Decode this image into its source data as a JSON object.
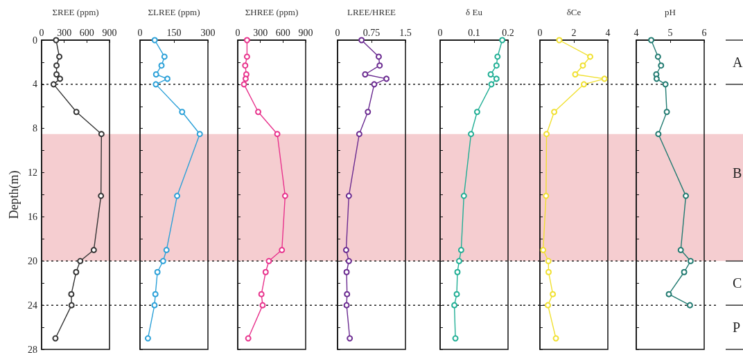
{
  "chart_data": [
    {
      "type": "line",
      "xlabel": "ΣREE (ppm)",
      "ylabel": "Depth(m)",
      "xlim": [
        0,
        900
      ],
      "xticks": [
        0,
        300,
        600,
        900
      ],
      "ylim": [
        28,
        0
      ],
      "yticks": [
        0,
        {
          "value": 2,
          "label": null
        },
        4,
        {
          "value": 6,
          "label": null
        },
        8,
        {
          "value": 10,
          "label": null
        },
        12,
        {
          "value": 14,
          "label": null
        },
        16,
        {
          "value": 18,
          "label": null
        },
        20,
        {
          "value": 22,
          "label": null
        },
        24,
        {
          "value": 26,
          "label": null
        },
        28
      ],
      "grid": false,
      "marker": "circle",
      "line_style": "solid",
      "series": [
        {
          "color": "#333333",
          "x": [
            192,
            235,
            198,
            198,
            244,
            159,
            461,
            793,
            787,
            692,
            512,
            458,
            394,
            397,
            183
          ],
          "values": [
            0,
            1.5,
            2.3,
            3.1,
            3.5,
            4,
            6.5,
            8.5,
            14.1,
            19,
            20,
            21,
            23,
            24,
            27
          ]
        }
      ],
      "bands": [
        {
          "axis": "y",
          "from": 8.5,
          "to": 20,
          "color": "#f5cdd0"
        }
      ],
      "ref_lines": [
        {
          "axis": "y",
          "value": 4,
          "line_style": "dotted"
        },
        {
          "axis": "y",
          "value": 20,
          "line_style": "dotted"
        },
        {
          "axis": "y",
          "value": 24,
          "line_style": "dotted"
        }
      ]
    },
    {
      "type": "line",
      "xlabel": "ΣLREE (ppm)",
      "xlim": [
        0,
        300
      ],
      "xticks": [
        0,
        150,
        300
      ],
      "ylim": [
        28,
        0
      ],
      "yticks": [
        0,
        {
          "value": 2,
          "label": null
        },
        4,
        {
          "value": 6,
          "label": null
        },
        8,
        {
          "value": 10,
          "label": null
        },
        12,
        {
          "value": 14,
          "label": null
        },
        16,
        {
          "value": 18,
          "label": null
        },
        20,
        {
          "value": 22,
          "label": null
        },
        24,
        {
          "value": 26,
          "label": null
        },
        28
      ],
      "tick_labels": "x",
      "grid": false,
      "marker": "circle",
      "line_style": "solid",
      "series": [
        {
          "color": "#2aa0d8",
          "x": [
            65,
            108,
            95,
            71,
            121,
            70,
            186,
            264,
            164,
            117,
            102,
            77,
            68,
            64,
            35
          ],
          "values": [
            0,
            1.5,
            2.3,
            3.1,
            3.5,
            4,
            6.5,
            8.5,
            14.1,
            19,
            20,
            21,
            23,
            24,
            27
          ]
        }
      ],
      "bands": [
        {
          "axis": "y",
          "from": 8.5,
          "to": 20,
          "color": "#f5cdd0"
        }
      ],
      "ref_lines": [
        {
          "axis": "y",
          "value": 4,
          "line_style": "dotted"
        },
        {
          "axis": "y",
          "value": 20,
          "line_style": "dotted"
        },
        {
          "axis": "y",
          "value": 24,
          "line_style": "dotted"
        }
      ]
    },
    {
      "type": "line",
      "xlabel": "ΣHREE (ppm)",
      "xlim": [
        0,
        900
      ],
      "xticks": [
        0,
        300,
        600,
        900
      ],
      "ylim": [
        28,
        0
      ],
      "yticks": [
        0,
        {
          "value": 2,
          "label": null
        },
        4,
        {
          "value": 6,
          "label": null
        },
        8,
        {
          "value": 10,
          "label": null
        },
        12,
        {
          "value": 14,
          "label": null
        },
        16,
        {
          "value": 18,
          "label": null
        },
        20,
        {
          "value": 22,
          "label": null
        },
        24,
        {
          "value": 26,
          "label": null
        },
        28
      ],
      "tick_labels": "x",
      "grid": false,
      "marker": "circle",
      "line_style": "solid",
      "series": [
        {
          "color": "#e8328c",
          "x": [
            123,
            123,
            99,
            114,
            105,
            83,
            271,
            524,
            628,
            585,
            413,
            370,
            314,
            330,
            139
          ],
          "values": [
            0,
            1.5,
            2.3,
            3.1,
            3.5,
            4,
            6.5,
            8.5,
            14.1,
            19,
            20,
            21,
            23,
            24,
            27
          ]
        }
      ],
      "bands": [
        {
          "axis": "y",
          "from": 8.5,
          "to": 20,
          "color": "#f5cdd0"
        }
      ],
      "ref_lines": [
        {
          "axis": "y",
          "value": 4,
          "line_style": "dotted"
        },
        {
          "axis": "y",
          "value": 20,
          "line_style": "dotted"
        },
        {
          "axis": "y",
          "value": 24,
          "line_style": "dotted"
        }
      ]
    },
    {
      "type": "line",
      "xlabel": "LREE/HREE",
      "xlim": [
        0,
        1.5
      ],
      "xticks": [
        0,
        0.75,
        1.5
      ],
      "ylim": [
        28,
        0
      ],
      "yticks": [
        0,
        {
          "value": 2,
          "label": null
        },
        4,
        {
          "value": 6,
          "label": null
        },
        8,
        {
          "value": 10,
          "label": null
        },
        12,
        {
          "value": 14,
          "label": null
        },
        16,
        {
          "value": 18,
          "label": null
        },
        20,
        {
          "value": 22,
          "label": null
        },
        24,
        {
          "value": 26,
          "label": null
        },
        28
      ],
      "tick_labels": "x",
      "grid": false,
      "marker": "circle",
      "line_style": "solid",
      "series": [
        {
          "color": "#6a2a90",
          "x": [
            0.53,
            0.91,
            0.93,
            0.61,
            1.08,
            0.81,
            0.67,
            0.48,
            0.25,
            0.19,
            0.25,
            0.2,
            0.21,
            0.2,
            0.27
          ],
          "values": [
            0,
            1.5,
            2.3,
            3.1,
            3.5,
            4,
            6.5,
            8.5,
            14.1,
            19,
            20,
            21,
            23,
            24,
            27
          ]
        }
      ],
      "bands": [
        {
          "axis": "y",
          "from": 8.5,
          "to": 20,
          "color": "#f5cdd0"
        }
      ],
      "ref_lines": [
        {
          "axis": "y",
          "value": 4,
          "line_style": "dotted"
        },
        {
          "axis": "y",
          "value": 20,
          "line_style": "dotted"
        },
        {
          "axis": "y",
          "value": 24,
          "line_style": "dotted"
        }
      ]
    },
    {
      "type": "line",
      "xlabel": "δ Eu",
      "xlim": [
        0,
        0.2
      ],
      "xticks": [
        0,
        0.1,
        0.2
      ],
      "ylim": [
        28,
        0
      ],
      "yticks": [
        0,
        {
          "value": 2,
          "label": null
        },
        4,
        {
          "value": 6,
          "label": null
        },
        8,
        {
          "value": 10,
          "label": null
        },
        12,
        {
          "value": 14,
          "label": null
        },
        16,
        {
          "value": 18,
          "label": null
        },
        20,
        {
          "value": 22,
          "label": null
        },
        24,
        {
          "value": 26,
          "label": null
        },
        28
      ],
      "tick_labels": "x",
      "grid": false,
      "marker": "circle",
      "line_style": "solid",
      "series": [
        {
          "color": "#1fae94",
          "x": [
            0.183,
            0.169,
            0.166,
            0.149,
            0.166,
            0.151,
            0.109,
            0.091,
            0.07,
            0.062,
            0.056,
            0.051,
            0.049,
            0.042,
            0.045
          ],
          "values": [
            0,
            1.5,
            2.3,
            3.1,
            3.5,
            4,
            6.5,
            8.5,
            14.1,
            19,
            20,
            21,
            23,
            24,
            27
          ]
        }
      ],
      "bands": [
        {
          "axis": "y",
          "from": 8.5,
          "to": 20,
          "color": "#f5cdd0"
        }
      ],
      "ref_lines": [
        {
          "axis": "y",
          "value": 4,
          "line_style": "dotted"
        },
        {
          "axis": "y",
          "value": 20,
          "line_style": "dotted"
        },
        {
          "axis": "y",
          "value": 24,
          "line_style": "dotted"
        }
      ]
    },
    {
      "type": "line",
      "xlabel": "δCe",
      "xlim": [
        0,
        4
      ],
      "xticks": [
        0,
        2,
        4
      ],
      "ylim": [
        28,
        0
      ],
      "yticks": [
        0,
        {
          "value": 2,
          "label": null
        },
        4,
        {
          "value": 6,
          "label": null
        },
        8,
        {
          "value": 10,
          "label": null
        },
        12,
        {
          "value": 14,
          "label": null
        },
        16,
        {
          "value": 18,
          "label": null
        },
        20,
        {
          "value": 22,
          "label": null
        },
        24,
        {
          "value": 26,
          "label": null
        },
        28
      ],
      "tick_labels": "x",
      "grid": false,
      "marker": "circle",
      "line_style": "solid",
      "series": [
        {
          "color": "#f0e030",
          "x": [
            1.14,
            2.96,
            2.53,
            2.08,
            3.8,
            2.59,
            0.84,
            0.39,
            0.36,
            0.19,
            0.5,
            0.51,
            0.76,
            0.47,
            0.94
          ],
          "values": [
            0,
            1.5,
            2.3,
            3.1,
            3.5,
            4,
            6.5,
            8.5,
            14.1,
            19,
            20,
            21,
            23,
            24,
            27
          ]
        }
      ],
      "bands": [
        {
          "axis": "y",
          "from": 8.5,
          "to": 20,
          "color": "#f5cdd0"
        }
      ],
      "ref_lines": [
        {
          "axis": "y",
          "value": 4,
          "line_style": "dotted"
        },
        {
          "axis": "y",
          "value": 20,
          "line_style": "dotted"
        },
        {
          "axis": "y",
          "value": 24,
          "line_style": "dotted"
        }
      ]
    },
    {
      "type": "line",
      "xlabel": "pH",
      "xlim": [
        4,
        6
      ],
      "xticks": [
        4,
        5,
        6
      ],
      "ylim": [
        28,
        0
      ],
      "yticks": [
        0,
        {
          "value": 2,
          "label": null
        },
        4,
        {
          "value": 6,
          "label": null
        },
        8,
        {
          "value": 10,
          "label": null
        },
        12,
        {
          "value": 14,
          "label": null
        },
        16,
        {
          "value": 18,
          "label": null
        },
        20,
        {
          "value": 22,
          "label": null
        },
        24,
        {
          "value": 26,
          "label": null
        },
        28
      ],
      "tick_labels": "x",
      "grid": false,
      "marker": "circle",
      "line_style": "solid",
      "series": [
        {
          "color": "#207a70",
          "x": [
            4.44,
            4.64,
            4.73,
            4.59,
            4.6,
            4.86,
            4.9,
            4.65,
            5.46,
            5.31,
            5.6,
            5.41,
            4.96,
            5.58
          ],
          "values": [
            0,
            1.5,
            2.3,
            3.1,
            3.5,
            4,
            6.5,
            8.5,
            14.1,
            19,
            20,
            21,
            23,
            24
          ]
        }
      ],
      "bands": [
        {
          "axis": "y",
          "from": 8.5,
          "to": 20,
          "color": "#f5cdd0"
        }
      ],
      "ref_lines": [
        {
          "axis": "y",
          "value": 4,
          "line_style": "dotted"
        },
        {
          "axis": "y",
          "value": 20,
          "line_style": "dotted"
        },
        {
          "axis": "y",
          "value": 24,
          "line_style": "dotted"
        }
      ],
      "annotations": [
        "A",
        "B",
        "C",
        "P"
      ]
    }
  ]
}
